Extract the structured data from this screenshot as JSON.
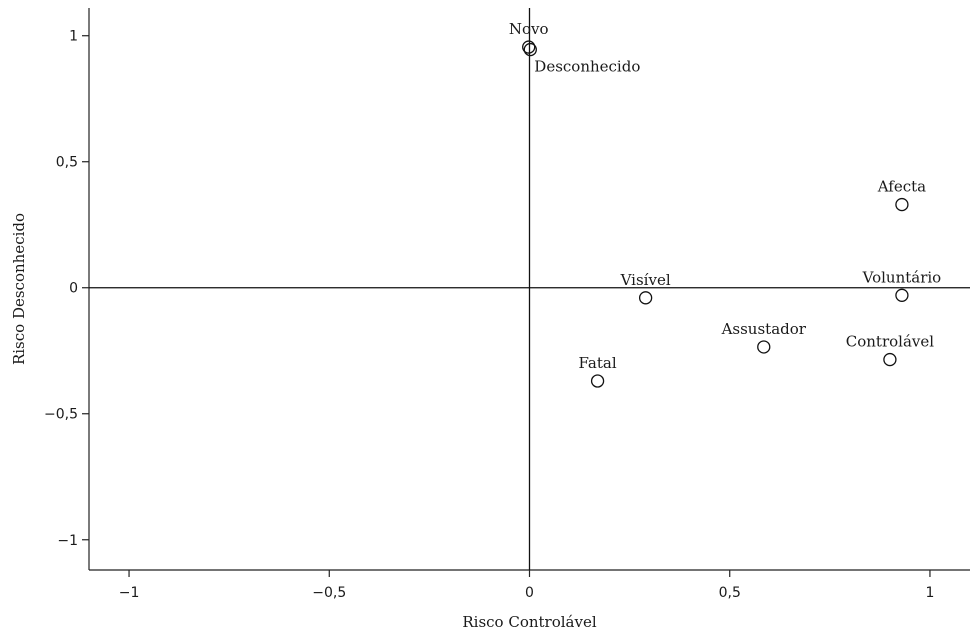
{
  "chart_data": {
    "type": "scatter",
    "title": "",
    "xlabel": "Risco Controlável",
    "ylabel": "Risco Desconhecido",
    "xlim": [
      -1.1,
      1.1
    ],
    "ylim": [
      -1.12,
      1.11
    ],
    "grid": false,
    "x_ticks": [
      -1,
      -0.5,
      0,
      0.5,
      1
    ],
    "x_tick_labels": [
      "−1",
      "−0,5",
      "0",
      "0,5",
      "1"
    ],
    "y_ticks": [
      1,
      0.5,
      0,
      -0.5,
      -1
    ],
    "y_tick_labels": [
      "1",
      "0,5",
      "0",
      "−0,5",
      "−1"
    ],
    "reference_lines": {
      "x": 0,
      "y": 0
    },
    "points": [
      {
        "label": "Novo",
        "x": -0.002,
        "y": 0.955,
        "label_pos": "above"
      },
      {
        "label": "Desconhecido",
        "x": 0.002,
        "y": 0.945,
        "label_pos": "below-right"
      },
      {
        "label": "Afecta",
        "x": 0.93,
        "y": 0.33,
        "label_pos": "above"
      },
      {
        "label": "Visível",
        "x": 0.29,
        "y": -0.04,
        "label_pos": "above"
      },
      {
        "label": "Voluntário",
        "x": 0.93,
        "y": -0.03,
        "label_pos": "above"
      },
      {
        "label": "Assustador",
        "x": 0.585,
        "y": -0.235,
        "label_pos": "above"
      },
      {
        "label": "Controlável",
        "x": 0.9,
        "y": -0.285,
        "label_pos": "above"
      },
      {
        "label": "Fatal",
        "x": 0.17,
        "y": -0.37,
        "label_pos": "above"
      }
    ]
  }
}
